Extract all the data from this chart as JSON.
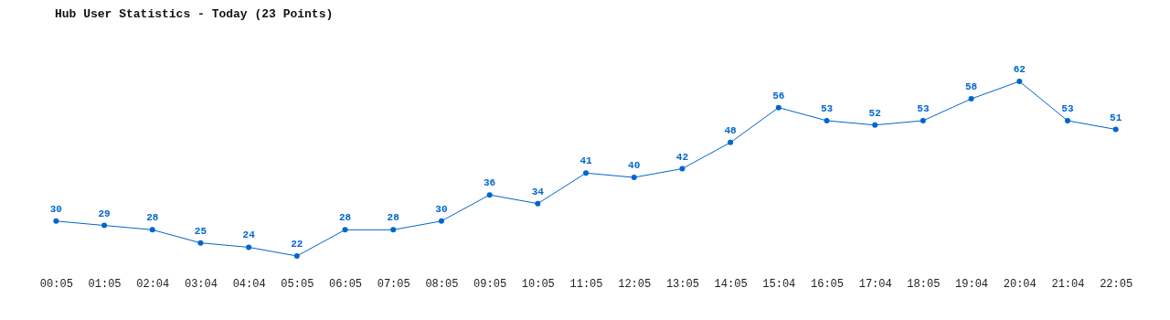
{
  "chart_data": {
    "type": "line",
    "title": "Hub User Statistics - Today (23 Points)",
    "categories": [
      "00:05",
      "01:05",
      "02:04",
      "03:04",
      "04:04",
      "05:05",
      "06:05",
      "07:05",
      "08:05",
      "09:05",
      "10:05",
      "11:05",
      "12:05",
      "13:05",
      "14:05",
      "15:04",
      "16:05",
      "17:04",
      "18:05",
      "19:04",
      "20:04",
      "21:04",
      "22:05"
    ],
    "values": [
      30,
      29,
      28,
      25,
      24,
      22,
      28,
      28,
      30,
      36,
      34,
      41,
      40,
      42,
      48,
      56,
      53,
      52,
      53,
      58,
      62,
      53,
      51
    ],
    "color": "#0066cc",
    "tick_labels": "x",
    "data_labels": true,
    "marker": "circle",
    "line_style": "solid"
  }
}
